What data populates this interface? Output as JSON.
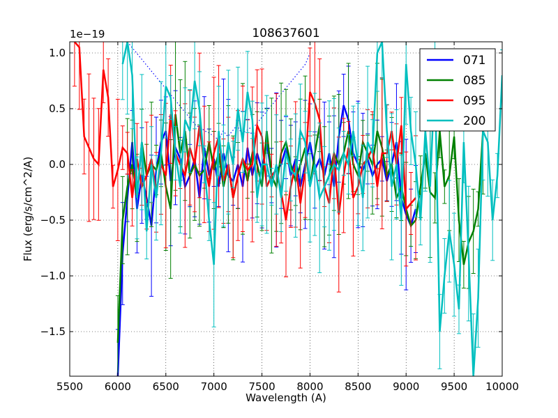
{
  "chart_data": {
    "type": "line",
    "title": "108637601",
    "xlabel": "Wavelength (A)",
    "ylabel": "Flux (erg/s/cm^2/A)",
    "offset_label": "1e−19",
    "xlim": [
      5500,
      10000
    ],
    "ylim": [
      -1.9,
      1.1
    ],
    "xticks": [
      5500,
      6000,
      6500,
      7000,
      7500,
      8000,
      8500,
      9000,
      9500,
      10000
    ],
    "xtick_labels": [
      "5500",
      "6000",
      "6500",
      "7000",
      "7500",
      "8000",
      "8500",
      "9000",
      "9500",
      "10000"
    ],
    "yticks": [
      -1.5,
      -1.0,
      -0.5,
      0.0,
      0.5,
      1.0
    ],
    "ytick_labels": [
      "−1.5",
      "−1.0",
      "−0.5",
      "0.0",
      "0.5",
      "1.0"
    ],
    "grid": true,
    "legend_position": "top-right",
    "series": [
      {
        "name": "071",
        "color": "#0000ff",
        "x": [
          6000,
          6050,
          6100,
          6150,
          6200,
          6250,
          6300,
          6350,
          6400,
          6450,
          6500,
          6550,
          6600,
          6650,
          6700,
          6750,
          6800,
          6850,
          6900,
          6950,
          7000,
          7050,
          7100,
          7150,
          7200,
          7250,
          7300,
          7350,
          7400,
          7450,
          7500,
          7550,
          7600,
          7650,
          7700,
          7750,
          7800,
          7850,
          7900,
          7950,
          8000,
          8050,
          8100,
          8150,
          8200,
          8250,
          8300,
          8350,
          8400,
          8450,
          8500,
          8550,
          8600,
          8650,
          8700,
          8750,
          8800,
          8850,
          8900,
          8950,
          9000,
          9050,
          9100
        ],
        "y": [
          -1.9,
          -0.8,
          -0.3,
          0.2,
          -0.4,
          -0.1,
          -0.3,
          -0.55,
          -0.05,
          0.2,
          0.3,
          -0.15,
          0.15,
          0.05,
          -0.2,
          -0.1,
          0.05,
          -0.3,
          0.15,
          -0.1,
          0.05,
          -0.2,
          0.1,
          -0.1,
          -0.15,
          0.0,
          -0.2,
          0.15,
          -0.1,
          0.1,
          -0.05,
          0.2,
          -0.1,
          -0.05,
          0.0,
          0.15,
          -0.1,
          0.05,
          -0.2,
          0.0,
          0.2,
          -0.05,
          0.05,
          -0.1,
          0.1,
          -0.2,
          0.25,
          0.53,
          0.4,
          0.1,
          0.0,
          -0.05,
          0.05,
          -0.1,
          0.0,
          0.05,
          -0.15,
          0.0,
          0.2,
          -0.3,
          -0.45,
          -0.55,
          -0.4
        ],
        "err_low": [],
        "dotted_y": [
          1.1,
          1.05,
          1.0,
          0.95,
          0.9,
          0.85,
          0.8,
          0.75,
          0.7,
          0.65,
          0.6,
          0.55,
          0.5,
          0.45,
          0.4,
          0.35,
          0.33,
          0.3,
          0.28,
          0.25,
          0.22,
          0.3,
          0.25,
          0.3,
          0.35,
          0.28,
          0.3,
          0.33,
          0.35,
          0.4,
          0.45,
          0.5,
          0.55,
          0.6,
          0.65,
          0.7,
          0.75,
          0.8,
          0.85,
          0.9,
          1.0
        ]
      },
      {
        "name": "085",
        "color": "#008000",
        "x": [
          6000,
          6050,
          6100,
          6150,
          6200,
          6250,
          6300,
          6350,
          6400,
          6450,
          6500,
          6550,
          6600,
          6650,
          6700,
          6750,
          6800,
          6850,
          6900,
          6950,
          7000,
          7050,
          7100,
          7150,
          7200,
          7250,
          7300,
          7350,
          7400,
          7450,
          7500,
          7550,
          7600,
          7650,
          7700,
          7750,
          7800,
          7850,
          7900,
          7950,
          8000,
          8050,
          8100,
          8150,
          8200,
          8250,
          8300,
          8350,
          8400,
          8450,
          8500,
          8550,
          8600,
          8650,
          8700,
          8750,
          8800,
          8850,
          8900,
          8950,
          9000,
          9050,
          9100,
          9150,
          9200,
          9250,
          9300,
          9350,
          9400,
          9450,
          9500,
          9550,
          9600,
          9650,
          9700,
          9750,
          9800
        ],
        "y": [
          -1.6,
          -0.5,
          -0.2,
          0.0,
          -0.3,
          0.2,
          -0.1,
          0.0,
          -0.05,
          0.1,
          -0.2,
          -0.4,
          0.45,
          0.1,
          0.3,
          -0.1,
          0.0,
          -0.1,
          -0.05,
          0.2,
          -0.05,
          0.1,
          -0.2,
          0.0,
          -0.3,
          -0.1,
          0.05,
          -0.15,
          0.1,
          0.0,
          -0.2,
          0.3,
          -0.1,
          -0.2,
          0.1,
          0.2,
          0.0,
          -0.15,
          0.0,
          0.15,
          -0.2,
          0.1,
          0.35,
          -0.2,
          -0.1,
          0.1,
          0.0,
          0.1,
          0.3,
          0.0,
          -0.1,
          0.2,
          0.1,
          0.0,
          0.3,
          0.15,
          -0.1,
          0.0,
          -0.3,
          -0.2,
          -0.4,
          -0.55,
          -0.5,
          -0.2,
          0.1,
          -0.25,
          -0.3,
          0.3,
          -0.2,
          -0.1,
          0.25,
          -0.5,
          -0.9,
          -0.7,
          -0.6,
          -0.4,
          0.3
        ]
      },
      {
        "name": "095",
        "color": "#ff0000",
        "x": [
          5550,
          5600,
          5650,
          5700,
          5750,
          5800,
          5850,
          5900,
          5950,
          6000,
          6050,
          6100,
          6150,
          6200,
          6250,
          6300,
          6350,
          6400,
          6450,
          6500,
          6550,
          6600,
          6650,
          6700,
          6750,
          6800,
          6850,
          6900,
          6950,
          7000,
          7050,
          7100,
          7150,
          7200,
          7250,
          7300,
          7350,
          7400,
          7450,
          7500,
          7550,
          7600,
          7650,
          7700,
          7750,
          7800,
          7850,
          7900,
          7950,
          8000,
          8050,
          8100,
          8150,
          8200,
          8250,
          8300,
          8350,
          8400,
          8450,
          8500,
          8550,
          8600,
          8650,
          8700,
          8750,
          8800,
          8850,
          8900,
          8950,
          9000,
          9050,
          9100
        ],
        "y": [
          1.1,
          1.05,
          0.25,
          0.15,
          0.05,
          0.0,
          0.85,
          0.6,
          -0.2,
          -0.05,
          0.15,
          0.1,
          -0.3,
          0.05,
          -0.2,
          -0.1,
          0.05,
          -0.25,
          0.0,
          -0.1,
          0.45,
          0.1,
          0.0,
          -0.1,
          0.15,
          0.0,
          0.35,
          0.0,
          -0.2,
          0.1,
          0.25,
          -0.15,
          0.0,
          -0.3,
          -0.1,
          0.05,
          -0.05,
          0.0,
          0.35,
          0.25,
          -0.2,
          -0.1,
          -0.05,
          -0.25,
          -0.5,
          -0.2,
          0.0,
          -0.35,
          -0.05,
          0.65,
          0.55,
          0.4,
          -0.2,
          -0.35,
          0.1,
          -0.45,
          -0.1,
          0.15,
          -0.3,
          -0.2,
          0.0,
          0.05,
          0.15,
          -0.2,
          0.1,
          0.1,
          0.3,
          0.0,
          0.35,
          -0.4,
          -0.35,
          -0.3
        ]
      },
      {
        "name": "200",
        "color": "#00bfbf",
        "x": [
          6050,
          6100,
          6150,
          6200,
          6250,
          6300,
          6350,
          6400,
          6450,
          6500,
          6550,
          6600,
          6650,
          6700,
          6750,
          6800,
          6850,
          6900,
          6950,
          7000,
          7050,
          7100,
          7150,
          7200,
          7250,
          7300,
          7350,
          7400,
          7450,
          7500,
          7550,
          7600,
          7650,
          7700,
          7750,
          7800,
          7850,
          7900,
          7950,
          8000,
          8050,
          8100,
          8150,
          8200,
          8250,
          8300,
          8350,
          8400,
          8450,
          8500,
          8550,
          8600,
          8650,
          8700,
          8750,
          8800,
          8850,
          8900,
          8950,
          9000,
          9050,
          9100,
          9150,
          9200,
          9250,
          9300,
          9350,
          9400,
          9450,
          9500,
          9550,
          9600,
          9650,
          9700,
          9750,
          9800,
          9850,
          9900,
          9950,
          10000
        ],
        "y": [
          0.9,
          1.1,
          0.8,
          -0.3,
          0.2,
          -0.6,
          0.0,
          -0.3,
          0.1,
          0.7,
          0.6,
          0.1,
          -0.2,
          0.4,
          0.3,
          0.75,
          0.5,
          0.0,
          -0.5,
          -0.9,
          0.3,
          -0.1,
          0.2,
          0.0,
          0.5,
          0.2,
          0.65,
          0.4,
          -0.3,
          0.0,
          0.0,
          -0.2,
          0.0,
          -0.3,
          0.1,
          -0.05,
          -0.1,
          0.3,
          0.2,
          -0.2,
          0.0,
          -0.3,
          -0.2,
          -0.1,
          0.0,
          -0.05,
          0.1,
          0.0,
          0.3,
          0.0,
          -0.3,
          0.2,
          0.1,
          1.0,
          1.1,
          0.3,
          -0.2,
          0.0,
          -0.5,
          0.9,
          0.3,
          0.0,
          -0.5,
          0.3,
          -0.2,
          0.8,
          -1.5,
          -1.0,
          -0.6,
          -0.9,
          -1.3,
          0.2,
          -0.8,
          -1.9,
          -1.2,
          0.3,
          0.2,
          -0.5,
          -0.1,
          0.8
        ]
      }
    ]
  }
}
